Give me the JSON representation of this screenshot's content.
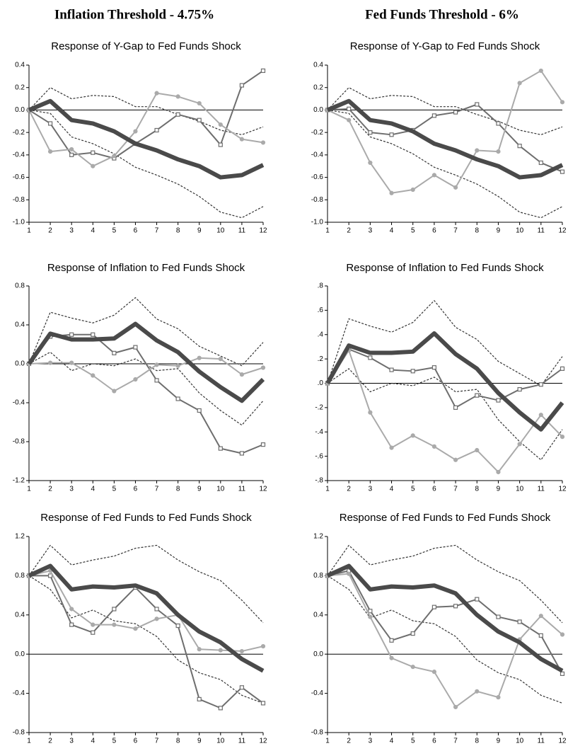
{
  "column_titles": [
    "Inflation Threshold - 4.75%",
    "Fed Funds Threshold - 6%"
  ],
  "chart_data": [
    {
      "type": "line",
      "title": "Response of Y-Gap to Fed Funds Shock",
      "x": [
        1,
        2,
        3,
        4,
        5,
        6,
        7,
        8,
        9,
        10,
        11,
        12
      ],
      "xlim": [
        1,
        12
      ],
      "xticks": [
        1,
        2,
        3,
        4,
        5,
        6,
        7,
        8,
        9,
        10,
        11,
        12
      ],
      "ylim": [
        -1.0,
        0.4
      ],
      "yticks": [
        0.4,
        0.2,
        {
          "value": 0,
          "label": "0.0"
        },
        -0.2,
        -0.4,
        -0.6,
        -0.8,
        {
          "value": -1,
          "label": "-1.0"
        }
      ],
      "series": [
        {
          "color": "#333333",
          "width": 1.2,
          "dash": "3,2",
          "marker": "none",
          "values": [
            0,
            0.2,
            0.1,
            0.13,
            0.12,
            0.03,
            0.03,
            -0.04,
            -0.1,
            -0.18,
            -0.22,
            -0.15
          ]
        },
        {
          "color": "#333333",
          "width": 1.2,
          "dash": "3,2",
          "marker": "none",
          "values": [
            0,
            -0.03,
            -0.24,
            -0.3,
            -0.39,
            -0.51,
            -0.58,
            -0.66,
            -0.77,
            -0.91,
            -0.96,
            -0.86
          ]
        },
        {
          "color": "#6e6e6e",
          "width": 2,
          "dash": "none",
          "marker": "square",
          "values": [
            0,
            -0.12,
            -0.4,
            -0.38,
            -0.43,
            -0.3,
            -0.18,
            -0.04,
            -0.09,
            -0.31,
            0.22,
            0.35
          ]
        },
        {
          "color": "#aaaaaa",
          "width": 2,
          "dash": "none",
          "marker": "circle",
          "values": [
            0,
            -0.37,
            -0.35,
            -0.5,
            -0.41,
            -0.19,
            0.15,
            0.12,
            0.06,
            -0.13,
            -0.26,
            -0.29
          ]
        },
        {
          "color": "#4a4a4a",
          "width": 6,
          "dash": "none",
          "marker": "none",
          "values": [
            0,
            0.08,
            -0.09,
            -0.12,
            -0.19,
            -0.3,
            -0.36,
            -0.44,
            -0.5,
            -0.6,
            -0.58,
            -0.49
          ]
        }
      ]
    },
    {
      "type": "line",
      "title": "Response of Y-Gap to Fed Funds Shock",
      "x": [
        1,
        2,
        3,
        4,
        5,
        6,
        7,
        8,
        9,
        10,
        11,
        12
      ],
      "xlim": [
        1,
        12
      ],
      "xticks": [
        1,
        2,
        3,
        4,
        5,
        6,
        7,
        8,
        9,
        10,
        11,
        12
      ],
      "ylim": [
        -1.0,
        0.4
      ],
      "yticks": [
        0.4,
        0.2,
        {
          "value": 0,
          "label": "0.0"
        },
        -0.2,
        -0.4,
        -0.6,
        -0.8,
        {
          "value": -1,
          "label": "-1.0"
        }
      ],
      "series": [
        {
          "color": "#333333",
          "width": 1.2,
          "dash": "3,2",
          "marker": "none",
          "values": [
            0,
            0.2,
            0.1,
            0.13,
            0.12,
            0.03,
            0.03,
            -0.04,
            -0.1,
            -0.18,
            -0.22,
            -0.15
          ]
        },
        {
          "color": "#333333",
          "width": 1.2,
          "dash": "3,2",
          "marker": "none",
          "values": [
            0,
            -0.03,
            -0.24,
            -0.3,
            -0.39,
            -0.51,
            -0.58,
            -0.66,
            -0.77,
            -0.91,
            -0.96,
            -0.86
          ]
        },
        {
          "color": "#6e6e6e",
          "width": 2,
          "dash": "none",
          "marker": "square",
          "values": [
            0,
            0.01,
            -0.2,
            -0.22,
            -0.18,
            -0.05,
            -0.02,
            0.05,
            -0.12,
            -0.32,
            -0.47,
            -0.55
          ]
        },
        {
          "color": "#aaaaaa",
          "width": 2,
          "dash": "none",
          "marker": "circle",
          "values": [
            0,
            -0.09,
            -0.47,
            -0.74,
            -0.71,
            -0.58,
            -0.69,
            -0.36,
            -0.37,
            0.24,
            0.35,
            0.07
          ]
        },
        {
          "color": "#4a4a4a",
          "width": 6,
          "dash": "none",
          "marker": "none",
          "values": [
            0,
            0.08,
            -0.09,
            -0.12,
            -0.19,
            -0.3,
            -0.36,
            -0.44,
            -0.5,
            -0.6,
            -0.58,
            -0.49
          ]
        }
      ]
    },
    {
      "type": "line",
      "title": "Response of Inflation to Fed Funds Shock",
      "x": [
        1,
        2,
        3,
        4,
        5,
        6,
        7,
        8,
        9,
        10,
        11,
        12
      ],
      "xlim": [
        1,
        12
      ],
      "xticks": [
        1,
        2,
        3,
        4,
        5,
        6,
        7,
        8,
        9,
        10,
        11,
        12
      ],
      "ylim": [
        -1.2,
        0.8
      ],
      "yticks": [
        0.8,
        0.4,
        {
          "value": 0,
          "label": "0.0"
        },
        -0.4,
        -0.8,
        -1.2
      ],
      "series": [
        {
          "color": "#333333",
          "width": 1.2,
          "dash": "3,2",
          "marker": "none",
          "values": [
            0,
            0.53,
            0.47,
            0.42,
            0.5,
            0.68,
            0.46,
            0.36,
            0.18,
            0.08,
            -0.02,
            0.22
          ]
        },
        {
          "color": "#333333",
          "width": 1.2,
          "dash": "3,2",
          "marker": "none",
          "values": [
            0,
            0.12,
            -0.07,
            0.0,
            -0.02,
            0.05,
            -0.07,
            -0.05,
            -0.3,
            -0.48,
            -0.63,
            -0.38
          ]
        },
        {
          "color": "#6e6e6e",
          "width": 2,
          "dash": "none",
          "marker": "square",
          "values": [
            0,
            0.28,
            0.3,
            0.3,
            0.11,
            0.17,
            -0.17,
            -0.36,
            -0.48,
            -0.87,
            -0.92,
            -0.83
          ]
        },
        {
          "color": "#aaaaaa",
          "width": 2,
          "dash": "none",
          "marker": "circle",
          "values": [
            0,
            0.01,
            0.01,
            -0.12,
            -0.28,
            -0.16,
            -0.01,
            -0.02,
            0.06,
            0.05,
            -0.11,
            -0.04
          ]
        },
        {
          "color": "#4a4a4a",
          "width": 6,
          "dash": "none",
          "marker": "none",
          "values": [
            0,
            0.31,
            0.25,
            0.25,
            0.26,
            0.41,
            0.24,
            0.12,
            -0.08,
            -0.24,
            -0.38,
            -0.16
          ]
        }
      ]
    },
    {
      "type": "line",
      "title": "Response of Inflation to Fed Funds Shock",
      "x": [
        1,
        2,
        3,
        4,
        5,
        6,
        7,
        8,
        9,
        10,
        11,
        12
      ],
      "xlim": [
        1,
        12
      ],
      "xticks": [
        1,
        2,
        3,
        4,
        5,
        6,
        7,
        8,
        9,
        10,
        11,
        12
      ],
      "ylim": [
        -0.8,
        0.8
      ],
      "yticks": [
        {
          "value": 0.8,
          "label": ".8"
        },
        {
          "value": 0.6,
          "label": ".6"
        },
        {
          "value": 0.4,
          "label": ".4"
        },
        {
          "value": 0.2,
          "label": ".2"
        },
        {
          "value": 0,
          "label": ".0"
        },
        {
          "value": -0.2,
          "label": "-.2"
        },
        {
          "value": -0.4,
          "label": "-.4"
        },
        {
          "value": -0.6,
          "label": "-.6"
        },
        {
          "value": -0.8,
          "label": "-.8"
        }
      ],
      "series": [
        {
          "color": "#333333",
          "width": 1.2,
          "dash": "3,2",
          "marker": "none",
          "values": [
            0,
            0.53,
            0.47,
            0.42,
            0.5,
            0.68,
            0.46,
            0.36,
            0.18,
            0.08,
            -0.02,
            0.22
          ]
        },
        {
          "color": "#333333",
          "width": 1.2,
          "dash": "3,2",
          "marker": "none",
          "values": [
            0,
            0.12,
            -0.07,
            0.0,
            -0.02,
            0.05,
            -0.07,
            -0.05,
            -0.3,
            -0.48,
            -0.63,
            -0.38
          ]
        },
        {
          "color": "#6e6e6e",
          "width": 2,
          "dash": "none",
          "marker": "square",
          "values": [
            0,
            0.28,
            0.21,
            0.11,
            0.1,
            0.13,
            -0.2,
            -0.1,
            -0.14,
            -0.05,
            -0.01,
            0.12
          ]
        },
        {
          "color": "#aaaaaa",
          "width": 2,
          "dash": "none",
          "marker": "circle",
          "values": [
            0,
            0.27,
            -0.24,
            -0.53,
            -0.43,
            -0.52,
            -0.63,
            -0.55,
            -0.73,
            -0.5,
            -0.26,
            -0.44
          ]
        },
        {
          "color": "#4a4a4a",
          "width": 6,
          "dash": "none",
          "marker": "none",
          "values": [
            0,
            0.31,
            0.25,
            0.25,
            0.26,
            0.41,
            0.24,
            0.12,
            -0.08,
            -0.24,
            -0.38,
            -0.16
          ]
        }
      ]
    },
    {
      "type": "line",
      "title": "Response of Fed Funds to Fed Funds Shock",
      "x": [
        1,
        2,
        3,
        4,
        5,
        6,
        7,
        8,
        9,
        10,
        11,
        12
      ],
      "xlim": [
        1,
        12
      ],
      "xticks": [
        1,
        2,
        3,
        4,
        5,
        6,
        7,
        8,
        9,
        10,
        11,
        12
      ],
      "ylim": [
        -0.8,
        1.2
      ],
      "yticks": [
        1.2,
        0.8,
        0.4,
        {
          "value": 0,
          "label": "0.0"
        },
        -0.4,
        -0.8
      ],
      "series": [
        {
          "color": "#333333",
          "width": 1.2,
          "dash": "3,2",
          "marker": "none",
          "values": [
            0.8,
            1.11,
            0.91,
            0.96,
            1.0,
            1.08,
            1.11,
            0.96,
            0.84,
            0.75,
            0.55,
            0.32
          ]
        },
        {
          "color": "#333333",
          "width": 1.2,
          "dash": "3,2",
          "marker": "none",
          "values": [
            0.8,
            0.66,
            0.37,
            0.45,
            0.34,
            0.31,
            0.18,
            -0.06,
            -0.19,
            -0.26,
            -0.42,
            -0.5
          ]
        },
        {
          "color": "#6e6e6e",
          "width": 2,
          "dash": "none",
          "marker": "square",
          "values": [
            0.8,
            0.8,
            0.3,
            0.22,
            0.46,
            0.68,
            0.46,
            0.29,
            -0.46,
            -0.55,
            -0.34,
            -0.5
          ]
        },
        {
          "color": "#aaaaaa",
          "width": 2,
          "dash": "none",
          "marker": "circle",
          "values": [
            0.8,
            0.85,
            0.46,
            0.3,
            0.3,
            0.26,
            0.36,
            0.4,
            0.05,
            0.04,
            0.03,
            0.08
          ]
        },
        {
          "color": "#4a4a4a",
          "width": 6,
          "dash": "none",
          "marker": "none",
          "values": [
            0.8,
            0.9,
            0.66,
            0.69,
            0.68,
            0.7,
            0.62,
            0.4,
            0.23,
            0.12,
            -0.05,
            -0.17
          ]
        }
      ]
    },
    {
      "type": "line",
      "title": "Response of Fed Funds to Fed Funds Shock",
      "x": [
        1,
        2,
        3,
        4,
        5,
        6,
        7,
        8,
        9,
        10,
        11,
        12
      ],
      "xlim": [
        1,
        12
      ],
      "xticks": [
        1,
        2,
        3,
        4,
        5,
        6,
        7,
        8,
        9,
        10,
        11,
        12
      ],
      "ylim": [
        -0.8,
        1.2
      ],
      "yticks": [
        1.2,
        0.8,
        0.4,
        {
          "value": 0,
          "label": "0.0"
        },
        -0.4,
        -0.8
      ],
      "series": [
        {
          "color": "#333333",
          "width": 1.2,
          "dash": "3,2",
          "marker": "none",
          "values": [
            0.8,
            1.11,
            0.91,
            0.96,
            1.0,
            1.08,
            1.11,
            0.96,
            0.84,
            0.75,
            0.55,
            0.32
          ]
        },
        {
          "color": "#333333",
          "width": 1.2,
          "dash": "3,2",
          "marker": "none",
          "values": [
            0.8,
            0.66,
            0.37,
            0.45,
            0.34,
            0.31,
            0.18,
            -0.06,
            -0.19,
            -0.26,
            -0.42,
            -0.5
          ]
        },
        {
          "color": "#6e6e6e",
          "width": 2,
          "dash": "none",
          "marker": "square",
          "values": [
            0.8,
            0.85,
            0.44,
            0.14,
            0.21,
            0.48,
            0.49,
            0.56,
            0.38,
            0.33,
            0.19,
            -0.2
          ]
        },
        {
          "color": "#aaaaaa",
          "width": 2,
          "dash": "none",
          "marker": "circle",
          "values": [
            0.8,
            0.82,
            0.38,
            -0.04,
            -0.13,
            -0.18,
            -0.54,
            -0.38,
            -0.44,
            0.15,
            0.39,
            0.2
          ]
        },
        {
          "color": "#4a4a4a",
          "width": 6,
          "dash": "none",
          "marker": "none",
          "values": [
            0.8,
            0.9,
            0.66,
            0.69,
            0.68,
            0.7,
            0.62,
            0.4,
            0.23,
            0.12,
            -0.05,
            -0.17
          ]
        }
      ]
    }
  ]
}
